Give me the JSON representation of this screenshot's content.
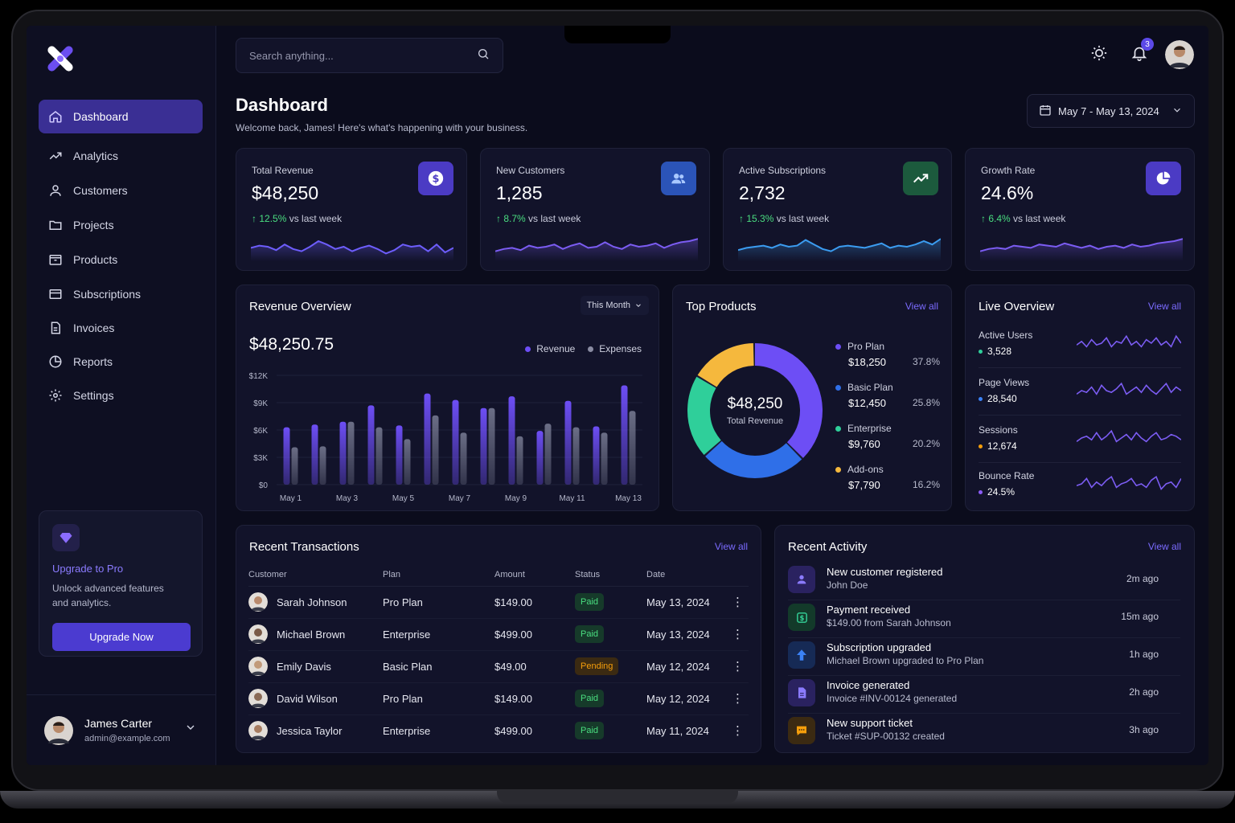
{
  "search": {
    "placeholder": "Search anything..."
  },
  "notifications": {
    "count": "3"
  },
  "page": {
    "title": "Dashboard",
    "subtitle": "Welcome back, James! Here's what's happening with your business.",
    "date_range": "May 7 - May 13, 2024"
  },
  "sidebar": {
    "items": [
      {
        "label": "Dashboard",
        "icon": "home-icon",
        "active": true
      },
      {
        "label": "Analytics",
        "icon": "trend-icon"
      },
      {
        "label": "Customers",
        "icon": "user-icon"
      },
      {
        "label": "Projects",
        "icon": "folder-icon"
      },
      {
        "label": "Products",
        "icon": "box-icon"
      },
      {
        "label": "Subscriptions",
        "icon": "card-icon"
      },
      {
        "label": "Invoices",
        "icon": "file-icon"
      },
      {
        "label": "Reports",
        "icon": "pie-icon"
      },
      {
        "label": "Settings",
        "icon": "gear-icon"
      }
    ],
    "upgrade": {
      "title": "Upgrade to Pro",
      "desc": "Unlock advanced features and analytics.",
      "button": "Upgrade Now"
    },
    "profile": {
      "name": "James Carter",
      "email": "admin@example.com"
    }
  },
  "stats": [
    {
      "title": "Total Revenue",
      "value": "$48,250",
      "change": "12.5%",
      "suffix": "vs last week",
      "icon": "dollar-icon",
      "icon_bg": "#4b3bc4",
      "spark_color": "#6d5dfc",
      "spark": [
        0.45,
        0.55,
        0.5,
        0.35,
        0.6,
        0.4,
        0.3,
        0.5,
        0.75,
        0.6,
        0.4,
        0.5,
        0.3,
        0.45,
        0.55,
        0.4,
        0.2,
        0.35,
        0.6,
        0.5,
        0.55,
        0.3,
        0.6,
        0.25,
        0.45
      ]
    },
    {
      "title": "New Customers",
      "value": "1,285",
      "change": "8.7%",
      "suffix": "vs last week",
      "icon": "users-icon",
      "icon_bg": "#2b54b8",
      "spark_color": "#7b5cf2",
      "spark": [
        0.3,
        0.4,
        0.45,
        0.35,
        0.55,
        0.45,
        0.5,
        0.6,
        0.4,
        0.55,
        0.65,
        0.45,
        0.5,
        0.7,
        0.5,
        0.4,
        0.6,
        0.5,
        0.55,
        0.65,
        0.45,
        0.6,
        0.7,
        0.75,
        0.85
      ]
    },
    {
      "title": "Active Subscriptions",
      "value": "2,732",
      "change": "15.3%",
      "suffix": "vs last week",
      "icon": "trend-up-icon",
      "icon_bg": "#1c5a3d",
      "spark_color": "#3b9cf0",
      "spark": [
        0.35,
        0.45,
        0.5,
        0.55,
        0.45,
        0.6,
        0.5,
        0.55,
        0.8,
        0.6,
        0.4,
        0.3,
        0.5,
        0.55,
        0.5,
        0.45,
        0.55,
        0.65,
        0.45,
        0.55,
        0.5,
        0.6,
        0.75,
        0.6,
        0.85
      ]
    },
    {
      "title": "Growth Rate",
      "value": "24.6%",
      "change": "6.4%",
      "suffix": "vs last week",
      "icon": "pie-chart-icon",
      "icon_bg": "#4b3bc4",
      "spark_color": "#7b5cf2",
      "spark": [
        0.3,
        0.4,
        0.45,
        0.4,
        0.55,
        0.5,
        0.45,
        0.6,
        0.55,
        0.5,
        0.65,
        0.55,
        0.45,
        0.55,
        0.4,
        0.5,
        0.55,
        0.45,
        0.6,
        0.5,
        0.55,
        0.65,
        0.7,
        0.75,
        0.85
      ]
    }
  ],
  "revenue": {
    "title": "Revenue Overview",
    "period": "This Month",
    "total": "$48,250.75",
    "legend": [
      "Revenue",
      "Expenses"
    ]
  },
  "chart_data": {
    "type": "bar",
    "x": [
      "May 1",
      "May 2",
      "May 3",
      "May 4",
      "May 5",
      "May 6",
      "May 7",
      "May 8",
      "May 9",
      "May 10",
      "May 11",
      "May 12",
      "May 13"
    ],
    "x_tick_labels": [
      "May 1",
      "May 3",
      "May 5",
      "May 7",
      "May 9",
      "May 11",
      "May 13"
    ],
    "y_ticks": [
      "$0",
      "$3K",
      "$6K",
      "$9K",
      "$12K"
    ],
    "ylim": [
      0,
      12000
    ],
    "series": [
      {
        "name": "Revenue",
        "color": "#6d4ef5",
        "values": [
          6300,
          6600,
          6900,
          8700,
          6500,
          10000,
          9300,
          8400,
          9700,
          5900,
          9200,
          6400,
          10900
        ]
      },
      {
        "name": "Expenses",
        "color": "#6b6e86",
        "values": [
          4100,
          4200,
          6900,
          6300,
          5000,
          7600,
          5700,
          8400,
          5300,
          6700,
          6300,
          5700,
          8100
        ]
      }
    ]
  },
  "top_products": {
    "title": "Top Products",
    "view_all": "View all",
    "center_value": "$48,250",
    "center_label": "Total Revenue",
    "items": [
      {
        "name": "Pro Plan",
        "value": "$18,250",
        "pct": "37.8%",
        "share": 37.8,
        "color": "#6d4ef5"
      },
      {
        "name": "Basic Plan",
        "value": "$12,450",
        "pct": "25.8%",
        "share": 25.8,
        "color": "#2f6fe8"
      },
      {
        "name": "Enterprise",
        "value": "$9,760",
        "pct": "20.2%",
        "share": 20.2,
        "color": "#2fcf9a"
      },
      {
        "name": "Add-ons",
        "value": "$7,790",
        "pct": "16.2%",
        "share": 16.2,
        "color": "#f5b83d"
      }
    ]
  },
  "live": {
    "title": "Live Overview",
    "view_all": "View all",
    "items": [
      {
        "label": "Active Users",
        "value": "3,528",
        "dot": "#2fcf9a",
        "spark": [
          0.4,
          0.6,
          0.3,
          0.7,
          0.4,
          0.5,
          0.8,
          0.3,
          0.6,
          0.5,
          0.9,
          0.4,
          0.6,
          0.3,
          0.7,
          0.5,
          0.8,
          0.4,
          0.6,
          0.3,
          0.9,
          0.5
        ]
      },
      {
        "label": "Page Views",
        "value": "28,540",
        "dot": "#3b82f6",
        "spark": [
          0.3,
          0.5,
          0.4,
          0.7,
          0.3,
          0.8,
          0.5,
          0.4,
          0.6,
          0.9,
          0.3,
          0.5,
          0.7,
          0.4,
          0.8,
          0.5,
          0.3,
          0.6,
          0.9,
          0.4,
          0.7,
          0.5
        ]
      },
      {
        "label": "Sessions",
        "value": "12,674",
        "dot": "#f59e0b",
        "spark": [
          0.3,
          0.5,
          0.6,
          0.4,
          0.8,
          0.4,
          0.6,
          0.9,
          0.3,
          0.5,
          0.7,
          0.4,
          0.8,
          0.5,
          0.3,
          0.6,
          0.8,
          0.4,
          0.5,
          0.7,
          0.6,
          0.4
        ]
      },
      {
        "label": "Bounce Rate",
        "value": "24.5%",
        "dot": "#8b5cf6",
        "spark": [
          0.4,
          0.5,
          0.8,
          0.3,
          0.6,
          0.4,
          0.7,
          0.9,
          0.3,
          0.5,
          0.6,
          0.8,
          0.4,
          0.5,
          0.3,
          0.7,
          0.9,
          0.2,
          0.5,
          0.6,
          0.3,
          0.8
        ]
      }
    ]
  },
  "transactions": {
    "title": "Recent Transactions",
    "view_all": "View all",
    "headers": [
      "Customer",
      "Plan",
      "Amount",
      "Status",
      "Date"
    ],
    "rows": [
      {
        "customer": "Sarah Johnson",
        "plan": "Pro Plan",
        "amount": "$149.00",
        "status": "Paid",
        "date": "May 13, 2024",
        "avatar_color": "#b98a6c"
      },
      {
        "customer": "Michael Brown",
        "plan": "Enterprise",
        "amount": "$499.00",
        "status": "Paid",
        "date": "May 13, 2024",
        "avatar_color": "#7a5a48"
      },
      {
        "customer": "Emily Davis",
        "plan": "Basic Plan",
        "amount": "$49.00",
        "status": "Pending",
        "date": "May 12, 2024",
        "avatar_color": "#c19a7a"
      },
      {
        "customer": "David Wilson",
        "plan": "Pro Plan",
        "amount": "$149.00",
        "status": "Paid",
        "date": "May 12, 2024",
        "avatar_color": "#8a6a55"
      },
      {
        "customer": "Jessica Taylor",
        "plan": "Enterprise",
        "amount": "$499.00",
        "status": "Paid",
        "date": "May 11, 2024",
        "avatar_color": "#a67c60"
      }
    ]
  },
  "activity": {
    "title": "Recent Activity",
    "view_all": "View all",
    "items": [
      {
        "title": "New customer registered",
        "sub": "John Doe",
        "time": "2m ago",
        "icon": "user-add-icon",
        "bg": "#2a2260",
        "fg": "#8b7bff"
      },
      {
        "title": "Payment received",
        "sub": "$149.00 from Sarah Johnson",
        "time": "15m ago",
        "icon": "dollar-icon",
        "bg": "#133a2a",
        "fg": "#34d399"
      },
      {
        "title": "Subscription upgraded",
        "sub": "Michael Brown upgraded to Pro Plan",
        "time": "1h ago",
        "icon": "arrow-up-icon",
        "bg": "#162a55",
        "fg": "#3b82f6"
      },
      {
        "title": "Invoice generated",
        "sub": "Invoice #INV-00124 generated",
        "time": "2h ago",
        "icon": "file-icon",
        "bg": "#2a2260",
        "fg": "#8b7bff"
      },
      {
        "title": "New support ticket",
        "sub": "Ticket #SUP-00132 created",
        "time": "3h ago",
        "icon": "chat-icon",
        "bg": "#3b2a12",
        "fg": "#f59e0b"
      }
    ]
  }
}
